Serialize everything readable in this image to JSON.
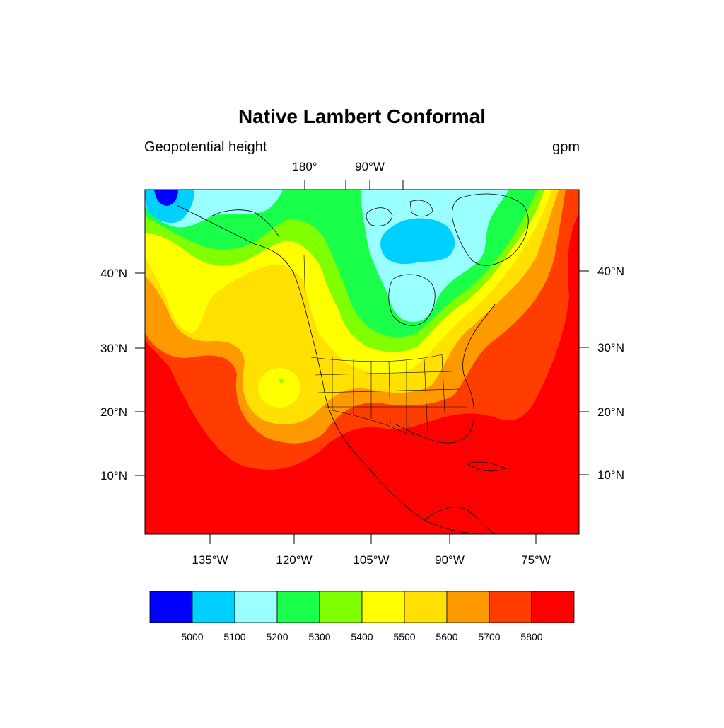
{
  "header": {
    "title": "Native Lambert Conformal",
    "left_subtitle": "Geopotential height",
    "right_subtitle": "gpm"
  },
  "map": {
    "projection": "Lambert Conformal",
    "top_lon_labels": [
      "180°",
      "90°W"
    ],
    "bottom_lon_labels": [
      "135°W",
      "120°W",
      "105°W",
      "90°W",
      "75°W"
    ],
    "left_lat_labels": [
      "40°N",
      "30°N",
      "20°N",
      "10°N"
    ],
    "right_lat_labels": [
      "40°N",
      "30°N",
      "20°N",
      "10°N"
    ],
    "features": [
      "coastlines",
      "country borders",
      "US state borders"
    ],
    "field": "Geopotential height"
  },
  "colorbar": {
    "levels": [
      "5000",
      "5100",
      "5200",
      "5300",
      "5400",
      "5500",
      "5600",
      "5700",
      "5800"
    ],
    "colors": [
      "#0000ff",
      "#00d0ff",
      "#99ffff",
      "#1aff4a",
      "#80ff00",
      "#ffff00",
      "#ffe000",
      "#ff9900",
      "#ff3d00",
      "#ff0000"
    ]
  }
}
